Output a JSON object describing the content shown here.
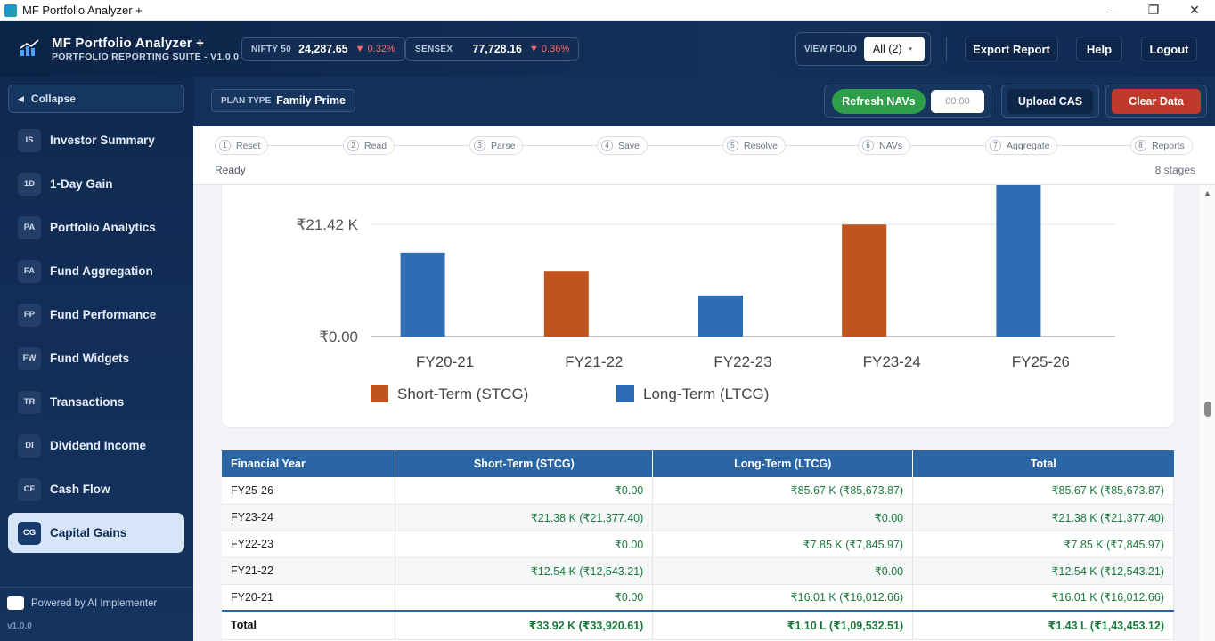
{
  "window": {
    "title": "MF Portfolio Analyzer +",
    "minimize": "—",
    "restore": "❐",
    "close": "✕"
  },
  "brand": {
    "name": "MF Portfolio Analyzer +",
    "subtitle": "PORTFOLIO REPORTING SUITE - V1.0.0"
  },
  "tickers": [
    {
      "label": "NIFTY 50",
      "value": "24,287.65",
      "change": "▼ 0.32%"
    },
    {
      "label": "SENSEX",
      "value": "77,728.16",
      "change": "▼ 0.36%"
    }
  ],
  "folio": {
    "label": "VIEW FOLIO",
    "selected": "All (2)",
    "caret": "▾"
  },
  "header_buttons": {
    "export": "Export Report",
    "help": "Help",
    "logout": "Logout"
  },
  "sidebar": {
    "collapse_label": "Collapse",
    "collapse_icon": "◀",
    "items": [
      {
        "abbr": "IS",
        "label": "Investor Summary"
      },
      {
        "abbr": "1D",
        "label": "1-Day Gain"
      },
      {
        "abbr": "PA",
        "label": "Portfolio Analytics"
      },
      {
        "abbr": "FA",
        "label": "Fund Aggregation"
      },
      {
        "abbr": "FP",
        "label": "Fund Performance"
      },
      {
        "abbr": "FW",
        "label": "Fund Widgets"
      },
      {
        "abbr": "TR",
        "label": "Transactions"
      },
      {
        "abbr": "DI",
        "label": "Dividend Income"
      },
      {
        "abbr": "CF",
        "label": "Cash Flow"
      },
      {
        "abbr": "CG",
        "label": "Capital Gains"
      }
    ],
    "active_index": 9,
    "powered_by": "Powered by AI Implementer",
    "version": "v1.0.0"
  },
  "plan": {
    "label": "PLAN TYPE",
    "value": "Family Prime"
  },
  "actions": {
    "refresh": "Refresh NAVs",
    "timer": "00:00",
    "upload": "Upload CAS",
    "clear": "Clear Data"
  },
  "stepper": {
    "steps": [
      {
        "num": "1",
        "label": "Reset"
      },
      {
        "num": "2",
        "label": "Read"
      },
      {
        "num": "3",
        "label": "Parse"
      },
      {
        "num": "4",
        "label": "Save"
      },
      {
        "num": "5",
        "label": "Resolve"
      },
      {
        "num": "6",
        "label": "NAVs"
      },
      {
        "num": "7",
        "label": "Aggregate"
      },
      {
        "num": "8",
        "label": "Reports"
      }
    ],
    "status": "Ready",
    "stages": "8 stages"
  },
  "chart_data": {
    "type": "bar",
    "categories": [
      "FY20-21",
      "FY21-22",
      "FY22-23",
      "FY23-24",
      "FY25-26"
    ],
    "series": [
      {
        "name": "Short-Term (STCG)",
        "color": "#c0541f",
        "values": [
          0,
          12543.21,
          0,
          21377.4,
          0
        ]
      },
      {
        "name": "Long-Term (LTCG)",
        "color": "#2e6db4",
        "values": [
          16012.66,
          0,
          7845.97,
          0,
          85673.87
        ]
      }
    ],
    "y_ticks": [
      "₹0.00",
      "₹21.42 K"
    ],
    "y_tick_values": [
      0,
      21420
    ],
    "legend_position": "bottom-left",
    "grid": true
  },
  "table": {
    "headers": [
      "Financial Year",
      "Short-Term (STCG)",
      "Long-Term (LTCG)",
      "Total"
    ],
    "rows": [
      [
        "FY25-26",
        "₹0.00",
        "₹85.67 K (₹85,673.87)",
        "₹85.67 K (₹85,673.87)"
      ],
      [
        "FY23-24",
        "₹21.38 K (₹21,377.40)",
        "₹0.00",
        "₹21.38 K (₹21,377.40)"
      ],
      [
        "FY22-23",
        "₹0.00",
        "₹7.85 K (₹7,845.97)",
        "₹7.85 K (₹7,845.97)"
      ],
      [
        "FY21-22",
        "₹12.54 K (₹12,543.21)",
        "₹0.00",
        "₹12.54 K (₹12,543.21)"
      ],
      [
        "FY20-21",
        "₹0.00",
        "₹16.01 K (₹16,012.66)",
        "₹16.01 K (₹16,012.66)"
      ]
    ],
    "total": [
      "Total",
      "₹33.92 K (₹33,920.61)",
      "₹1.10 L (₹1,09,532.51)",
      "₹1.43 L (₹1,43,453.12)"
    ]
  },
  "scrollbar": {
    "up_icon": "▲"
  }
}
